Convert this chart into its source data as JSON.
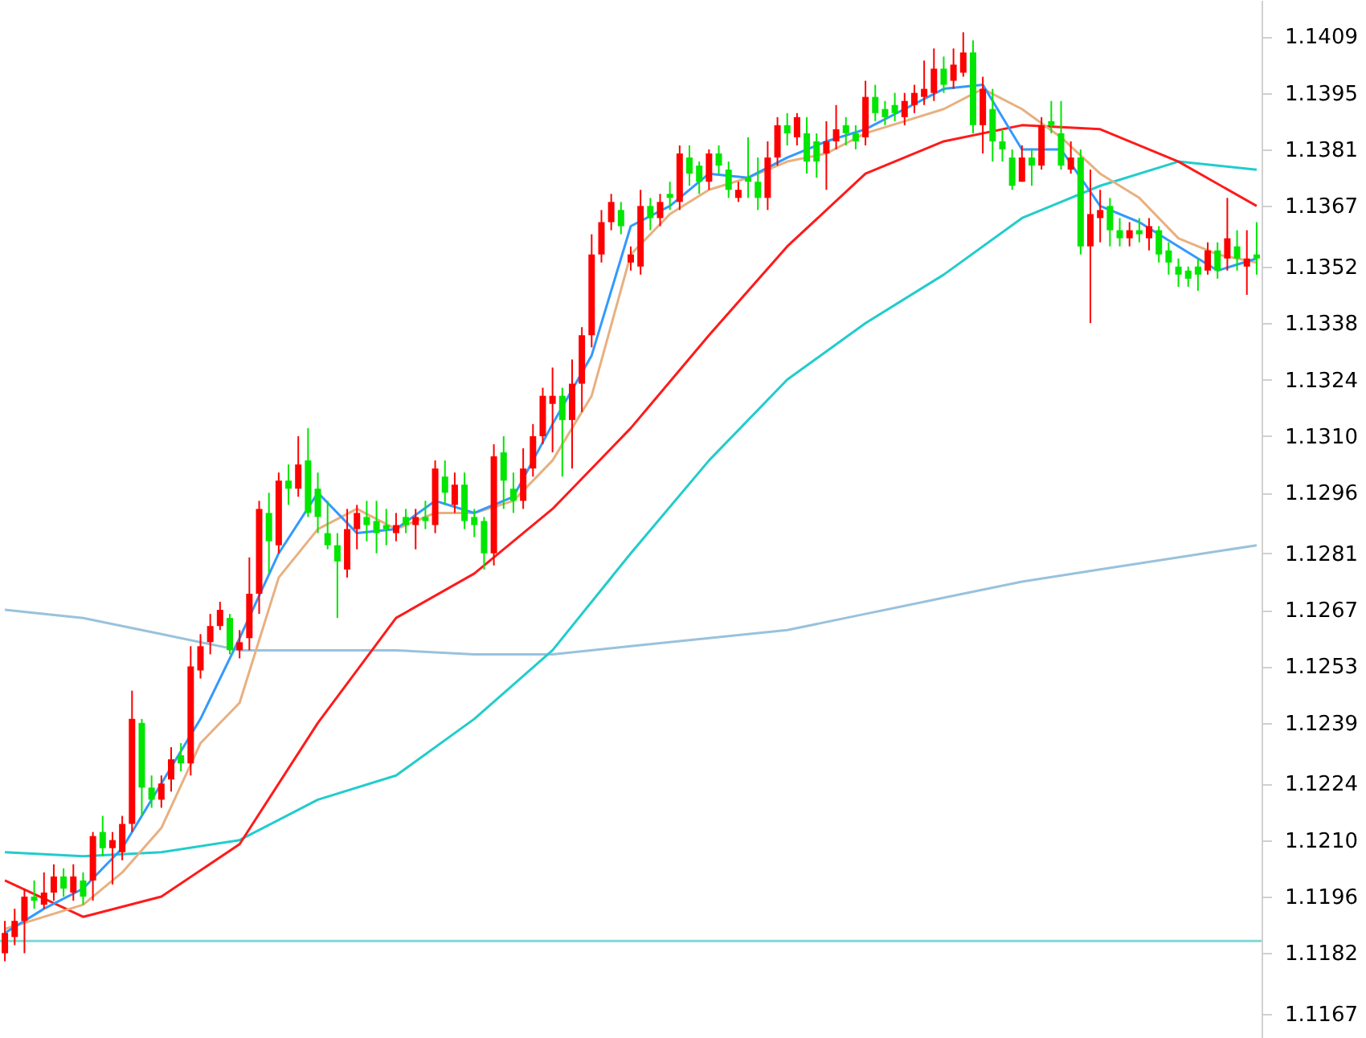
{
  "chart_data": {
    "type": "candlestick",
    "categories": [
      null,
      null,
      null,
      null,
      null,
      null,
      null,
      null,
      null,
      null,
      null,
      null,
      null,
      null,
      null,
      null,
      null,
      null,
      null,
      null,
      null,
      null,
      null,
      null,
      null,
      null,
      null,
      null,
      null,
      null,
      null,
      null,
      null,
      null,
      null,
      null,
      null,
      null,
      null,
      null,
      null,
      null,
      null,
      null,
      null,
      null,
      null,
      null,
      null,
      null,
      null,
      null,
      null,
      null,
      null,
      null,
      null,
      null,
      null,
      null,
      null,
      null,
      null,
      null,
      null,
      null,
      null,
      null,
      null,
      null,
      null,
      null,
      null,
      null,
      null,
      null,
      null,
      null,
      null,
      null,
      null,
      null,
      null,
      null,
      null,
      null,
      null,
      null,
      null,
      null,
      null,
      null,
      null,
      null,
      null,
      null,
      null,
      null,
      null,
      null,
      null,
      null,
      null,
      null,
      null,
      null,
      null,
      null,
      null,
      null,
      null,
      null,
      null,
      null,
      null,
      null,
      null,
      null,
      null,
      null,
      null,
      null,
      null,
      null,
      null,
      null,
      null,
      null,
      null
    ],
    "ohlc": [
      [
        1.1182,
        1.119,
        1.118,
        1.1187
      ],
      [
        1.1186,
        1.1193,
        1.1184,
        1.119
      ],
      [
        1.119,
        1.1198,
        1.1182,
        1.1196
      ],
      [
        1.1196,
        1.12,
        1.1193,
        1.1195
      ],
      [
        1.1194,
        1.1202,
        1.1193,
        1.1197
      ],
      [
        1.1197,
        1.1204,
        1.1195,
        1.1201
      ],
      [
        1.1201,
        1.1203,
        1.1196,
        1.1198
      ],
      [
        1.1197,
        1.1204,
        1.1195,
        1.1201
      ],
      [
        1.12,
        1.1202,
        1.1194,
        1.1196
      ],
      [
        1.12,
        1.1212,
        1.1195,
        1.1211
      ],
      [
        1.1212,
        1.1216,
        1.1206,
        1.1208
      ],
      [
        1.1208,
        1.1212,
        1.1199,
        1.121
      ],
      [
        1.1207,
        1.1216,
        1.1205,
        1.1214
      ],
      [
        1.1214,
        1.1247,
        1.1212,
        1.124
      ],
      [
        1.1239,
        1.124,
        1.1216,
        1.1223
      ],
      [
        1.1223,
        1.1226,
        1.1218,
        1.122
      ],
      [
        1.122,
        1.1226,
        1.1218,
        1.1224
      ],
      [
        1.1225,
        1.1233,
        1.1222,
        1.123
      ],
      [
        1.1231,
        1.1234,
        1.1227,
        1.1229
      ],
      [
        1.1229,
        1.1258,
        1.1226,
        1.1253
      ],
      [
        1.1252,
        1.1261,
        1.125,
        1.1258
      ],
      [
        1.1259,
        1.1266,
        1.1256,
        1.1263
      ],
      [
        1.1263,
        1.1269,
        1.1262,
        1.1267
      ],
      [
        1.1265,
        1.1266,
        1.1256,
        1.1257
      ],
      [
        1.1257,
        1.1262,
        1.1255,
        1.1259
      ],
      [
        1.126,
        1.128,
        1.1257,
        1.1271
      ],
      [
        1.1271,
        1.1294,
        1.1266,
        1.1292
      ],
      [
        1.1291,
        1.1296,
        1.1276,
        1.1284
      ],
      [
        1.1283,
        1.1301,
        1.1281,
        1.1299
      ],
      [
        1.1299,
        1.1303,
        1.1293,
        1.1297
      ],
      [
        1.1297,
        1.131,
        1.1295,
        1.1303
      ],
      [
        1.1304,
        1.1312,
        1.129,
        1.1291
      ],
      [
        1.1297,
        1.1301,
        1.1286,
        1.129
      ],
      [
        1.1286,
        1.1294,
        1.1282,
        1.1283
      ],
      [
        1.1283,
        1.1286,
        1.1265,
        1.1279
      ],
      [
        1.1277,
        1.1292,
        1.1275,
        1.1287
      ],
      [
        1.1287,
        1.1293,
        1.1282,
        1.1291
      ],
      [
        1.129,
        1.1294,
        1.1284,
        1.1288
      ],
      [
        1.1289,
        1.1294,
        1.1281,
        1.1286
      ],
      [
        1.1288,
        1.1292,
        1.1283,
        1.1287
      ],
      [
        1.1286,
        1.1291,
        1.1284,
        1.1288
      ],
      [
        1.129,
        1.1292,
        1.1286,
        1.1288
      ],
      [
        1.1288,
        1.1292,
        1.1282,
        1.129
      ],
      [
        1.129,
        1.1294,
        1.1287,
        1.1289
      ],
      [
        1.1288,
        1.1304,
        1.1286,
        1.1302
      ],
      [
        1.13,
        1.1304,
        1.1293,
        1.1296
      ],
      [
        1.1293,
        1.1301,
        1.1291,
        1.1298
      ],
      [
        1.1298,
        1.1301,
        1.1287,
        1.1289
      ],
      [
        1.129,
        1.1292,
        1.1285,
        1.1288
      ],
      [
        1.1289,
        1.129,
        1.1277,
        1.1281
      ],
      [
        1.1281,
        1.1308,
        1.1278,
        1.1305
      ],
      [
        1.1306,
        1.131,
        1.1292,
        1.1299
      ],
      [
        1.1297,
        1.1301,
        1.1291,
        1.1294
      ],
      [
        1.1294,
        1.1307,
        1.1292,
        1.1302
      ],
      [
        1.1302,
        1.1313,
        1.13,
        1.131
      ],
      [
        1.131,
        1.1322,
        1.1308,
        1.132
      ],
      [
        1.1318,
        1.1327,
        1.1306,
        1.132
      ],
      [
        1.132,
        1.1322,
        1.13,
        1.1314
      ],
      [
        1.1314,
        1.1329,
        1.1302,
        1.1323
      ],
      [
        1.1323,
        1.1337,
        1.1316,
        1.1335
      ],
      [
        1.1335,
        1.136,
        1.1332,
        1.1355
      ],
      [
        1.1355,
        1.1366,
        1.1353,
        1.1363
      ],
      [
        1.1363,
        1.137,
        1.1361,
        1.1368
      ],
      [
        1.1366,
        1.1368,
        1.136,
        1.1362
      ],
      [
        1.1353,
        1.1357,
        1.1351,
        1.1355
      ],
      [
        1.1352,
        1.1371,
        1.135,
        1.1367
      ],
      [
        1.1367,
        1.1369,
        1.1361,
        1.1364
      ],
      [
        1.1364,
        1.137,
        1.1362,
        1.1368
      ],
      [
        1.137,
        1.1373,
        1.1366,
        1.1369
      ],
      [
        1.1368,
        1.1382,
        1.1366,
        1.138
      ],
      [
        1.1379,
        1.1382,
        1.1372,
        1.1375
      ],
      [
        1.1377,
        1.1378,
        1.137,
        1.1373
      ],
      [
        1.1373,
        1.1381,
        1.1371,
        1.138
      ],
      [
        1.138,
        1.1382,
        1.1375,
        1.1377
      ],
      [
        1.1376,
        1.1378,
        1.1369,
        1.1371
      ],
      [
        1.1369,
        1.1373,
        1.1368,
        1.1371
      ],
      [
        1.1374,
        1.1384,
        1.1369,
        1.1373
      ],
      [
        1.1373,
        1.1379,
        1.1366,
        1.1369
      ],
      [
        1.1369,
        1.1383,
        1.1366,
        1.1379
      ],
      [
        1.1379,
        1.1389,
        1.1377,
        1.1387
      ],
      [
        1.1387,
        1.139,
        1.1382,
        1.1385
      ],
      [
        1.1384,
        1.139,
        1.1382,
        1.1389
      ],
      [
        1.1385,
        1.1389,
        1.1375,
        1.1378
      ],
      [
        1.1383,
        1.1385,
        1.1374,
        1.1378
      ],
      [
        1.138,
        1.1388,
        1.1371,
        1.1383
      ],
      [
        1.1383,
        1.1392,
        1.1381,
        1.1386
      ],
      [
        1.1387,
        1.1389,
        1.1382,
        1.1385
      ],
      [
        1.1385,
        1.1387,
        1.1381,
        1.1383
      ],
      [
        1.1384,
        1.1398,
        1.1382,
        1.1394
      ],
      [
        1.1394,
        1.1397,
        1.1388,
        1.139
      ],
      [
        1.1391,
        1.1393,
        1.1387,
        1.1389
      ],
      [
        1.1392,
        1.1395,
        1.1388,
        1.139
      ],
      [
        1.1389,
        1.1395,
        1.1387,
        1.1393
      ],
      [
        1.1392,
        1.1397,
        1.139,
        1.1395
      ],
      [
        1.1394,
        1.1403,
        1.1392,
        1.1396
      ],
      [
        1.1395,
        1.1406,
        1.1393,
        1.1401
      ],
      [
        1.1401,
        1.1404,
        1.1395,
        1.1397
      ],
      [
        1.1398,
        1.1406,
        1.1396,
        1.1402
      ],
      [
        1.14,
        1.141,
        1.1399,
        1.1405
      ],
      [
        1.1405,
        1.1408,
        1.1385,
        1.1387
      ],
      [
        1.1387,
        1.1399,
        1.138,
        1.1396
      ],
      [
        1.1391,
        1.1396,
        1.1378,
        1.1383
      ],
      [
        1.1383,
        1.1386,
        1.1378,
        1.1381
      ],
      [
        1.1379,
        1.1381,
        1.1371,
        1.1372
      ],
      [
        1.1373,
        1.1382,
        1.1373,
        1.1379
      ],
      [
        1.1379,
        1.1381,
        1.1372,
        1.1377
      ],
      [
        1.1377,
        1.1389,
        1.1376,
        1.1387
      ],
      [
        1.1388,
        1.1393,
        1.1385,
        1.1387
      ],
      [
        1.1385,
        1.1393,
        1.1376,
        1.1377
      ],
      [
        1.1376,
        1.1383,
        1.1375,
        1.1379
      ],
      [
        1.1379,
        1.1381,
        1.1355,
        1.1357
      ],
      [
        1.1357,
        1.1376,
        1.1338,
        1.1365
      ],
      [
        1.1364,
        1.1371,
        1.1358,
        1.1366
      ],
      [
        1.1367,
        1.1369,
        1.1357,
        1.1361
      ],
      [
        1.1361,
        1.1364,
        1.1357,
        1.1359
      ],
      [
        1.1359,
        1.1363,
        1.1357,
        1.1361
      ],
      [
        1.1361,
        1.1364,
        1.1358,
        1.136
      ],
      [
        1.1359,
        1.1364,
        1.1356,
        1.1362
      ],
      [
        1.1361,
        1.1362,
        1.1353,
        1.1355
      ],
      [
        1.1356,
        1.1358,
        1.135,
        1.1353
      ],
      [
        1.1352,
        1.1354,
        1.1347,
        1.135
      ],
      [
        1.1351,
        1.1352,
        1.1347,
        1.1349
      ],
      [
        1.1352,
        1.1354,
        1.1346,
        1.135
      ],
      [
        1.1351,
        1.1358,
        1.135,
        1.1356
      ],
      [
        1.1356,
        1.1358,
        1.1349,
        1.1351
      ],
      [
        1.1354,
        1.1369,
        1.1351,
        1.1359
      ],
      [
        1.1357,
        1.1361,
        1.1351,
        1.1354
      ],
      [
        1.1352,
        1.1361,
        1.1345,
        1.1354
      ],
      [
        1.1355,
        1.1363,
        1.135,
        1.1354
      ]
    ],
    "colors": [
      "#ff0000",
      "#ff0000",
      "#ff0000",
      "#00e600",
      "#ff0000",
      "#ff0000",
      "#00e600",
      "#ff0000",
      "#00e600",
      "#ff0000",
      "#00e600",
      "#ff0000",
      "#ff0000",
      "#ff0000",
      "#00e600",
      "#00e600",
      "#ff0000",
      "#ff0000",
      "#00e600",
      "#ff0000",
      "#ff0000",
      "#ff0000",
      "#ff0000",
      "#00e600",
      "#ff0000",
      "#ff0000",
      "#ff0000",
      "#00e600",
      "#ff0000",
      "#00e600",
      "#ff0000",
      "#00e600",
      "#00e600",
      "#00e600",
      "#00e600",
      "#ff0000",
      "#ff0000",
      "#00e600",
      "#00e600",
      "#00e600",
      "#ff0000",
      "#00e600",
      "#ff0000",
      "#00e600",
      "#ff0000",
      "#00e600",
      "#ff0000",
      "#00e600",
      "#00e600",
      "#00e600",
      "#ff0000",
      "#00e600",
      "#00e600",
      "#ff0000",
      "#ff0000",
      "#ff0000",
      "#ff0000",
      "#00e600",
      "#ff0000",
      "#ff0000",
      "#ff0000",
      "#ff0000",
      "#ff0000",
      "#00e600",
      "#ff0000",
      "#ff0000",
      "#00e600",
      "#ff0000",
      "#00e600",
      "#ff0000",
      "#00e600",
      "#00e600",
      "#ff0000",
      "#00e600",
      "#00e600",
      "#ff0000",
      "#00e600",
      "#00e600",
      "#ff0000",
      "#ff0000",
      "#00e600",
      "#ff0000",
      "#00e600",
      "#00e600",
      "#ff0000",
      "#ff0000",
      "#00e600",
      "#00e600",
      "#ff0000",
      "#00e600",
      "#00e600",
      "#00e600",
      "#ff0000",
      "#ff0000",
      "#ff0000",
      "#ff0000",
      "#00e600",
      "#ff0000",
      "#ff0000",
      "#00e600",
      "#ff0000",
      "#00e600",
      "#00e600",
      "#00e600",
      "#ff0000",
      "#00e600",
      "#ff0000",
      "#00e600",
      "#00e600",
      "#ff0000",
      "#00e600",
      "#ff0000",
      "#ff0000",
      "#00e600",
      "#00e600",
      "#ff0000",
      "#00e600",
      "#ff0000",
      "#00e600",
      "#00e600",
      "#00e600",
      "#00e600",
      "#00e600",
      "#ff0000",
      "#00e600",
      "#ff0000",
      "#00e600",
      "#ff0000",
      "#00e600"
    ],
    "series": [
      {
        "type": "line",
        "color": "#99c2dd",
        "values": [
          1.1267,
          null,
          null,
          null,
          null,
          null,
          null,
          null,
          1.1265,
          null,
          null,
          null,
          null,
          null,
          null,
          null,
          1.1261,
          null,
          null,
          null,
          null,
          null,
          null,
          null,
          1.1257,
          null,
          null,
          null,
          null,
          null,
          null,
          null,
          1.1257,
          null,
          null,
          null,
          null,
          null,
          null,
          null,
          1.1257,
          null,
          null,
          null,
          null,
          null,
          null,
          null,
          1.1256,
          null,
          null,
          null,
          null,
          null,
          null,
          null,
          1.1256,
          null,
          null,
          null,
          null,
          null,
          null,
          null,
          1.1258,
          null,
          null,
          null,
          null,
          null,
          null,
          null,
          1.126,
          null,
          null,
          null,
          null,
          null,
          null,
          null,
          1.1262,
          null,
          null,
          null,
          null,
          null,
          null,
          null,
          1.1266,
          null,
          null,
          null,
          null,
          null,
          null,
          null,
          1.127,
          null,
          null,
          null,
          null,
          null,
          null,
          null,
          1.1274,
          null,
          null,
          null,
          null,
          null,
          null,
          null,
          1.1277,
          null,
          null,
          null,
          null,
          null,
          null,
          null,
          1.128,
          null,
          null,
          null,
          null,
          null,
          null,
          null,
          1.1283
        ]
      },
      {
        "type": "line",
        "color": "#22cccc",
        "values": [
          1.1207,
          null,
          null,
          null,
          null,
          null,
          null,
          null,
          1.1206,
          null,
          null,
          null,
          null,
          null,
          null,
          null,
          1.1207,
          null,
          null,
          null,
          null,
          null,
          null,
          null,
          1.121,
          null,
          null,
          null,
          null,
          null,
          null,
          null,
          1.122,
          null,
          null,
          null,
          null,
          null,
          null,
          null,
          1.1226,
          null,
          null,
          null,
          null,
          null,
          null,
          null,
          1.124,
          null,
          null,
          null,
          null,
          null,
          null,
          null,
          1.1257,
          null,
          null,
          null,
          null,
          null,
          null,
          null,
          1.1281,
          null,
          null,
          null,
          null,
          null,
          null,
          null,
          1.1304,
          null,
          null,
          null,
          null,
          null,
          null,
          null,
          1.1324,
          null,
          null,
          null,
          null,
          null,
          null,
          null,
          1.1338,
          null,
          null,
          null,
          null,
          null,
          null,
          null,
          1.135,
          null,
          null,
          null,
          null,
          null,
          null,
          null,
          1.1364,
          null,
          null,
          null,
          null,
          null,
          null,
          null,
          1.1372,
          null,
          null,
          null,
          null,
          null,
          null,
          null,
          1.1378,
          null,
          null,
          null,
          null,
          null,
          null,
          null,
          1.1376
        ]
      },
      {
        "type": "line",
        "color": "#ff1a1a",
        "values": [
          1.12,
          null,
          null,
          null,
          null,
          null,
          null,
          null,
          1.1191,
          null,
          null,
          null,
          null,
          null,
          null,
          null,
          1.1196,
          null,
          null,
          null,
          null,
          null,
          null,
          null,
          1.1209,
          null,
          null,
          null,
          null,
          null,
          null,
          null,
          1.1239,
          null,
          null,
          null,
          null,
          null,
          null,
          null,
          1.1265,
          null,
          null,
          null,
          null,
          null,
          null,
          null,
          1.1276,
          null,
          null,
          null,
          null,
          null,
          null,
          null,
          1.1292,
          null,
          null,
          null,
          null,
          null,
          null,
          null,
          1.1312,
          null,
          null,
          null,
          null,
          null,
          null,
          null,
          1.1335,
          null,
          null,
          null,
          null,
          null,
          null,
          null,
          1.1357,
          null,
          null,
          null,
          null,
          null,
          null,
          null,
          1.1375,
          null,
          null,
          null,
          null,
          null,
          null,
          null,
          1.1383,
          null,
          null,
          null,
          null,
          null,
          null,
          null,
          1.1387,
          null,
          null,
          null,
          null,
          null,
          null,
          null,
          1.1386,
          null,
          null,
          null,
          null,
          null,
          null,
          null,
          1.1378,
          null,
          null,
          null,
          null,
          null,
          null,
          null,
          1.1367
        ]
      },
      {
        "type": "line",
        "color": "#e8b080",
        "values": [
          1.1188,
          null,
          null,
          null,
          1.1191,
          null,
          null,
          null,
          1.1194,
          null,
          null,
          null,
          1.1202,
          null,
          null,
          null,
          1.1213,
          null,
          null,
          null,
          1.1234,
          null,
          null,
          null,
          1.1244,
          null,
          null,
          null,
          1.1275,
          null,
          null,
          null,
          1.1287,
          null,
          null,
          null,
          1.1292,
          null,
          null,
          null,
          1.1287,
          null,
          null,
          null,
          1.1291,
          null,
          null,
          null,
          1.1291,
          null,
          null,
          null,
          1.1294,
          null,
          null,
          null,
          1.1304,
          null,
          null,
          null,
          1.132,
          null,
          null,
          null,
          1.1355,
          null,
          null,
          null,
          1.1365,
          null,
          null,
          null,
          1.1371,
          null,
          null,
          null,
          1.1374,
          null,
          null,
          null,
          1.1378,
          null,
          null,
          null,
          1.138,
          null,
          null,
          null,
          1.1385,
          null,
          null,
          null,
          1.1388,
          null,
          null,
          null,
          1.1391,
          null,
          null,
          null,
          1.1396,
          null,
          null,
          null,
          1.1391,
          null,
          null,
          null,
          1.1384,
          null,
          null,
          null,
          1.1375,
          null,
          null,
          null,
          1.1369,
          null,
          null,
          null,
          1.1359,
          null,
          null,
          null,
          1.1355,
          null,
          null,
          null,
          1.1353
        ]
      },
      {
        "type": "line",
        "color": "#3399ff",
        "values": [
          1.1187,
          null,
          null,
          null,
          1.1193,
          null,
          null,
          null,
          1.1198,
          null,
          null,
          null,
          1.1208,
          null,
          null,
          null,
          1.1224,
          null,
          null,
          null,
          1.124,
          null,
          null,
          null,
          1.126,
          null,
          null,
          null,
          1.1281,
          null,
          null,
          null,
          1.1296,
          null,
          null,
          null,
          1.1286,
          null,
          null,
          null,
          1.1287,
          null,
          null,
          null,
          1.1294,
          null,
          null,
          null,
          1.1291,
          null,
          null,
          null,
          1.1295,
          null,
          null,
          null,
          1.1313,
          null,
          null,
          null,
          1.133,
          null,
          null,
          null,
          1.1362,
          null,
          null,
          null,
          1.1367,
          null,
          null,
          null,
          1.1375,
          null,
          null,
          null,
          1.1374,
          null,
          null,
          null,
          1.1379,
          null,
          null,
          null,
          1.1383,
          null,
          null,
          null,
          1.1386,
          null,
          null,
          null,
          1.1391,
          null,
          null,
          null,
          1.1396,
          null,
          null,
          null,
          1.1397,
          null,
          null,
          null,
          1.1381,
          null,
          null,
          null,
          1.1381,
          null,
          null,
          null,
          1.1367,
          null,
          null,
          null,
          1.1363,
          null,
          null,
          null,
          1.1357,
          null,
          null,
          null,
          1.1351,
          null,
          null,
          null,
          1.1354
        ]
      }
    ],
    "ref_lines": [
      {
        "axis": "y",
        "value": 1.1185,
        "color": "#80d8d8"
      }
    ],
    "ylim": [
      1.1161,
      1.1418
    ],
    "yticks": [
      1.1167,
      1.1182,
      1.1196,
      {
        "value": 1.121,
        "label": "1.1210"
      },
      1.1224,
      1.1239,
      1.1253,
      1.1267,
      1.1281,
      1.1296,
      {
        "value": 1.131,
        "label": "1.1310"
      },
      1.1324,
      1.1338,
      1.1352,
      1.1367,
      1.1381,
      1.1395,
      1.1409
    ],
    "tick_labels": "y"
  }
}
